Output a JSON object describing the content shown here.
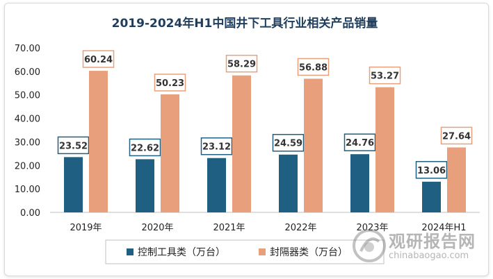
{
  "chart_data": {
    "type": "bar",
    "title": "2019-2024年H1中国井下工具行业相关产品销量",
    "categories": [
      "2019年",
      "2020年",
      "2021年",
      "2022年",
      "2023年",
      "2024年H1"
    ],
    "series": [
      {
        "name": "控制工具类（万台）",
        "values": [
          23.52,
          22.62,
          23.12,
          24.59,
          24.76,
          13.06
        ],
        "color": "#1f5f82"
      },
      {
        "name": "封隔器类（万台）",
        "values": [
          60.24,
          50.23,
          58.29,
          56.88,
          53.27,
          27.64
        ],
        "color": "#e8a07c"
      }
    ],
    "ylim": [
      0,
      70
    ],
    "yticks": [
      "0.00",
      "10.00",
      "20.00",
      "30.00",
      "40.00",
      "50.00",
      "60.00",
      "70.00"
    ],
    "grid": false,
    "legend_position": "bottom",
    "data_labels": true
  },
  "colors": {
    "title": "#1f3d5c",
    "label_border_dark": "#1f5f82",
    "label_border_light": "#e8a07c",
    "axis": "#bfbfbf"
  },
  "watermark": {
    "brand": "观研报告网",
    "url": "chinabaogao.com"
  }
}
